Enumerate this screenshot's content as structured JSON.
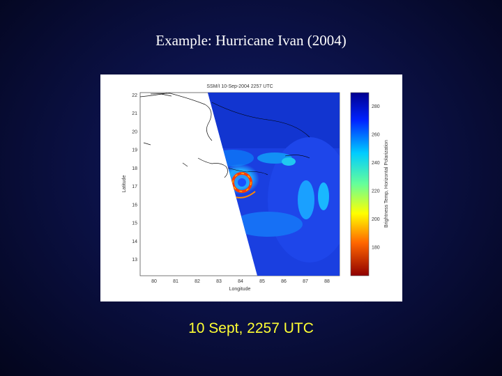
{
  "slide": {
    "title": "Example: Hurricane Ivan (2004)",
    "caption": "10 Sept, 2257 UTC"
  },
  "figure": {
    "plot_title": "SSM/I 10-Sep-2004 2257 UTC",
    "xlabel": "Longitude",
    "ylabel": "Latitude",
    "colorbar_label": "Brightness Temp, Horizontal Polarization",
    "x_ticks": [
      "80",
      "81",
      "82",
      "83",
      "84",
      "85",
      "86",
      "87",
      "88"
    ],
    "y_ticks": [
      "22",
      "21",
      "20",
      "19",
      "18",
      "17",
      "16",
      "15",
      "14",
      "13"
    ],
    "colorbar_ticks": [
      "280",
      "260",
      "240",
      "220",
      "200",
      "180"
    ],
    "colorbar_range": [
      160,
      290
    ],
    "colors": {
      "background": "#0b1146",
      "title_text": "#ffffff",
      "caption_text": "#ffff33"
    }
  }
}
